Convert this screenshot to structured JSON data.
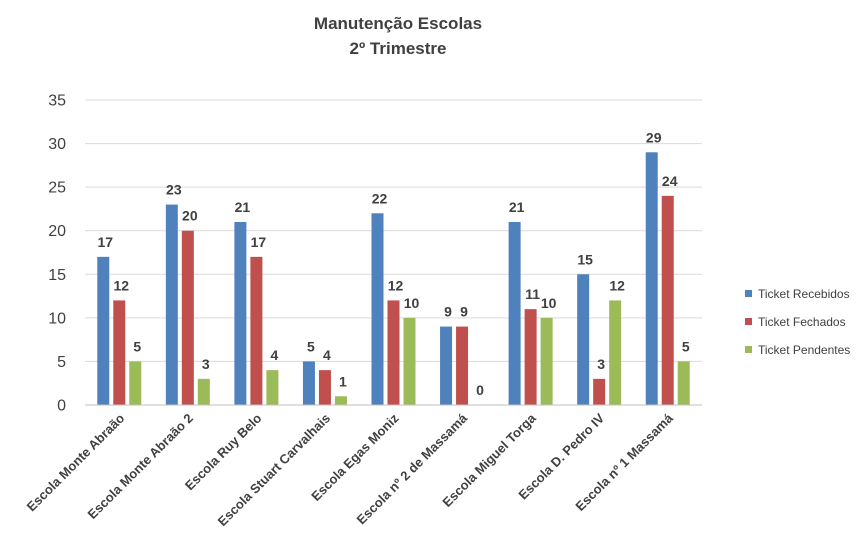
{
  "chart_data": {
    "type": "bar",
    "title": "Manutenção Escolas",
    "subtitle": "2º Trimestre",
    "xlabel": "",
    "ylabel": "",
    "ylim": [
      0,
      35
    ],
    "yticks": [
      0,
      5,
      10,
      15,
      20,
      25,
      30,
      35
    ],
    "grid": true,
    "legend_position": "right",
    "categories": [
      "Escola Monte Abraão",
      "Escola Monte Abraão 2",
      "Escola Ruy Belo",
      "Escola Stuart Carvalhais",
      "Escola Egas Moniz",
      "Escola nº 2 de Massamá",
      "Escola Miguel Torga",
      "Escola D. Pedro IV",
      "Escola nº 1 Massamá"
    ],
    "series": [
      {
        "name": "Ticket Recebidos",
        "color": "#4f81bd",
        "values": [
          17,
          23,
          21,
          5,
          22,
          9,
          21,
          15,
          29
        ]
      },
      {
        "name": "Ticket Fechados",
        "color": "#c0504d",
        "values": [
          12,
          20,
          17,
          4,
          12,
          9,
          11,
          3,
          24
        ]
      },
      {
        "name": "Ticket Pendentes",
        "color": "#9bbb59",
        "values": [
          5,
          3,
          4,
          1,
          10,
          0,
          10,
          12,
          5
        ]
      }
    ]
  }
}
